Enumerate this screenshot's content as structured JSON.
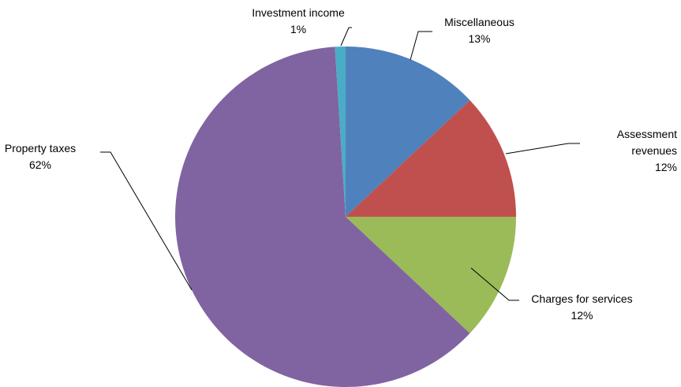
{
  "chart_data": {
    "type": "pie",
    "categories": [
      "Miscellaneous",
      "Assessment revenues",
      "Charges for services",
      "Property taxes",
      "Investment income"
    ],
    "values": [
      13,
      12,
      12,
      62,
      1
    ],
    "value_labels": [
      "13%",
      "12%",
      "12%",
      "62%",
      "1%"
    ],
    "colors": [
      "#4f81bd",
      "#c0504d",
      "#9bbb59",
      "#8064a2",
      "#4bacc6"
    ]
  }
}
